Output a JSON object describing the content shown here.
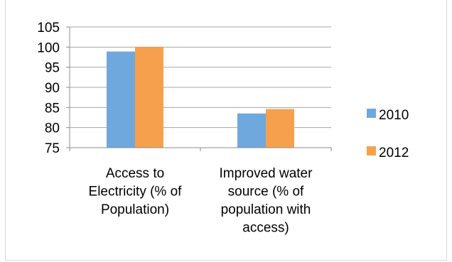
{
  "chart_data": {
    "type": "bar",
    "categories": [
      [
        "Access to",
        "Electricity (% of",
        "Population)"
      ],
      [
        "Improved water",
        "source (% of",
        "population with",
        "access)"
      ]
    ],
    "series": [
      {
        "name": "2010",
        "values": [
          98.9,
          83.5
        ],
        "color": "#6fa8dc"
      },
      {
        "name": "2012",
        "values": [
          100,
          84.6
        ],
        "color": "#f6a04d"
      }
    ],
    "ylim": [
      75,
      105
    ],
    "yticks": [
      75,
      80,
      85,
      90,
      95,
      100,
      105
    ],
    "grid": true,
    "legend": "right",
    "title": "",
    "xlabel": "",
    "ylabel": ""
  }
}
